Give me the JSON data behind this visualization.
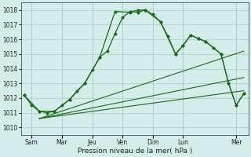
{
  "xlabel": "Pression niveau de la mer( hPa )",
  "ylim": [
    1009.5,
    1018.5
  ],
  "xlim": [
    -0.2,
    14.8
  ],
  "yticks": [
    1010,
    1011,
    1012,
    1013,
    1014,
    1015,
    1016,
    1017,
    1018
  ],
  "x_day_labels": [
    "Sam",
    "Mar",
    "Jeu",
    "Ven",
    "Dim",
    "Lun",
    "Mer"
  ],
  "x_day_positions": [
    0.5,
    2.5,
    4.5,
    6.5,
    8.5,
    10.5,
    14.0
  ],
  "background_color": "#d4ecea",
  "grid_color": "#a8cccc",
  "line_color": "#1a6b1a",
  "line1_x": [
    0.0,
    0.5,
    1.0,
    1.5,
    2.0,
    2.5,
    3.0,
    3.5,
    4.0,
    4.5,
    5.0,
    5.5,
    6.0,
    6.5,
    7.0,
    7.5,
    8.0,
    8.5,
    9.0,
    9.5,
    10.0,
    10.5,
    11.0,
    11.5,
    12.0,
    12.5,
    13.0,
    13.5,
    14.0,
    14.5
  ],
  "line1_y": [
    1012.2,
    1011.5,
    1011.1,
    1011.0,
    1011.1,
    1011.5,
    1011.9,
    1012.5,
    1013.0,
    1013.9,
    1014.8,
    1015.2,
    1016.4,
    1017.5,
    1017.9,
    1017.85,
    1018.0,
    1017.7,
    1017.2,
    1016.2,
    1015.0,
    1015.6,
    1016.3,
    1016.05,
    1015.85,
    1015.4,
    1015.0,
    1013.0,
    1011.5,
    1012.3
  ],
  "line2_x": [
    0.0,
    1.0,
    2.0,
    3.0,
    4.0,
    5.0,
    6.0,
    7.0,
    7.5,
    8.0,
    9.0,
    10.0,
    10.5,
    11.0,
    11.5,
    12.0,
    13.0,
    13.5,
    14.0,
    14.5
  ],
  "line2_y": [
    1012.2,
    1011.1,
    1011.1,
    1011.9,
    1013.0,
    1014.8,
    1017.9,
    1017.85,
    1018.0,
    1018.0,
    1017.2,
    1015.0,
    1015.6,
    1016.3,
    1016.05,
    1015.85,
    1015.0,
    1013.0,
    1011.5,
    1012.3
  ],
  "fan_lines": [
    {
      "x": [
        1.0,
        14.5
      ],
      "y": [
        1010.6,
        1012.5
      ]
    },
    {
      "x": [
        1.0,
        14.5
      ],
      "y": [
        1010.6,
        1013.4
      ]
    },
    {
      "x": [
        1.0,
        14.5
      ],
      "y": [
        1010.6,
        1015.2
      ]
    }
  ]
}
